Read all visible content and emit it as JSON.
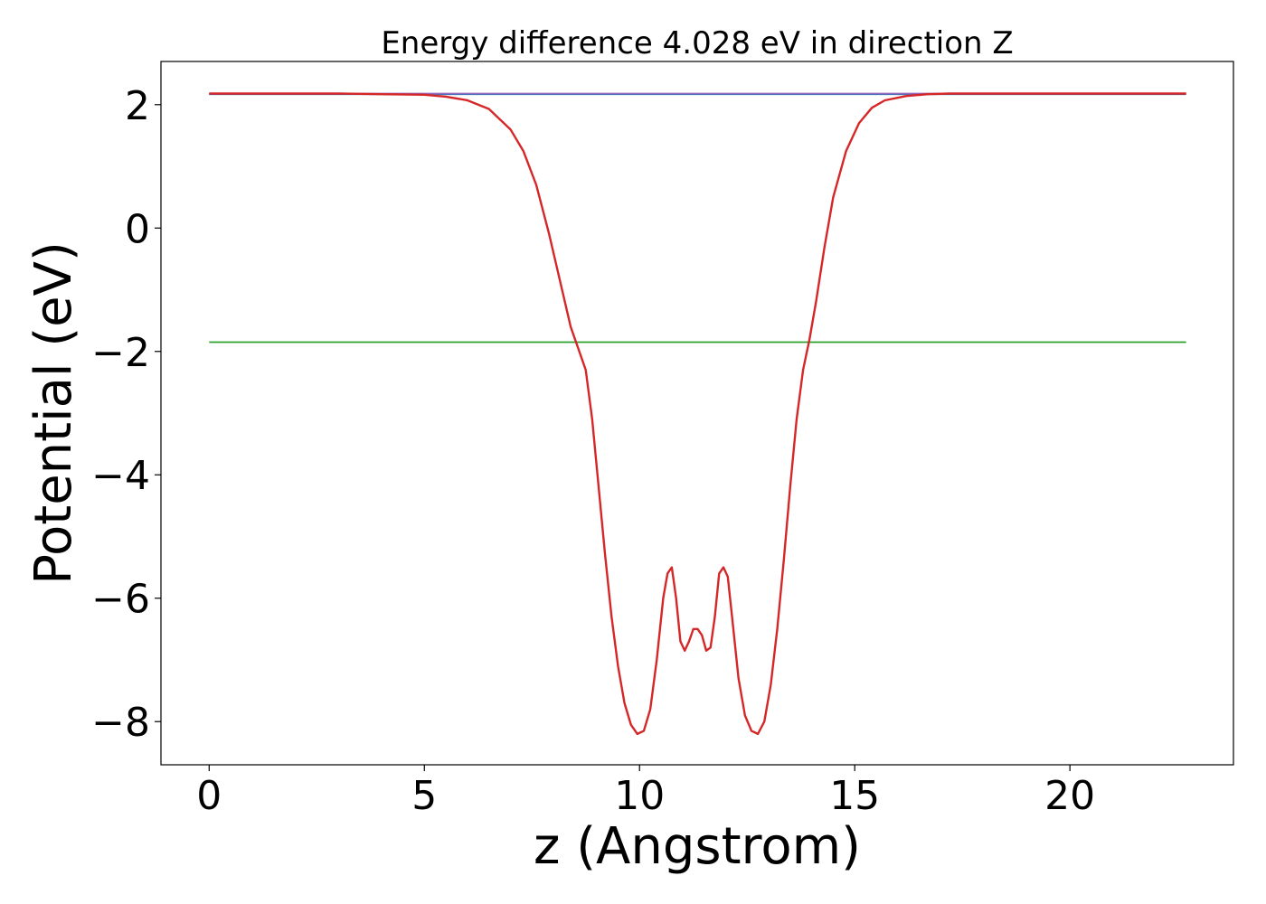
{
  "chart_data": {
    "type": "line",
    "title": "Energy difference 4.028 eV in direction Z",
    "xlabel": "z (Angstrom)",
    "ylabel": "Potential (eV)",
    "xlim": [
      -1.12,
      23.8
    ],
    "ylim": [
      -8.7,
      2.7
    ],
    "xticks": [
      0,
      5,
      10,
      15,
      20
    ],
    "xtick_labels": [
      "0",
      "5",
      "10",
      "15",
      "20"
    ],
    "yticks": [
      -8,
      -6,
      -4,
      -2,
      0,
      2
    ],
    "ytick_labels": [
      "−8",
      "−6",
      "−4",
      "−2",
      "0",
      "2"
    ],
    "grid": false,
    "series": [
      {
        "color": "#1f77b4",
        "x": [
          0,
          22.7
        ],
        "y": [
          2.17,
          2.17
        ]
      },
      {
        "color": "#2ca02c",
        "x": [
          0,
          22.7
        ],
        "y": [
          -1.85,
          -1.85
        ]
      },
      {
        "color": "#9467bd",
        "x": [
          0,
          22.7
        ],
        "y": [
          2.18,
          2.18
        ]
      },
      {
        "color": "#d62728",
        "x": [
          0,
          1,
          2,
          3,
          4,
          5,
          5.5,
          6,
          6.5,
          7,
          7.3,
          7.6,
          7.9,
          8.2,
          8.4,
          8.6,
          8.75,
          8.9,
          9.05,
          9.2,
          9.35,
          9.5,
          9.65,
          9.8,
          9.95,
          10.1,
          10.25,
          10.4,
          10.55,
          10.65,
          10.75,
          10.85,
          10.95,
          11.05,
          11.15,
          11.25,
          11.35,
          11.45,
          11.55,
          11.65,
          11.75,
          11.85,
          11.95,
          12.05,
          12.15,
          12.3,
          12.45,
          12.6,
          12.75,
          12.9,
          13.05,
          13.2,
          13.35,
          13.5,
          13.65,
          13.8,
          13.95,
          14.1,
          14.3,
          14.5,
          14.8,
          15.1,
          15.4,
          15.7,
          16.2,
          16.7,
          17.2,
          18,
          19,
          20,
          21,
          22,
          22.7
        ],
        "y": [
          2.18,
          2.18,
          2.18,
          2.18,
          2.17,
          2.16,
          2.13,
          2.07,
          1.93,
          1.6,
          1.25,
          0.7,
          -0.1,
          -1.0,
          -1.6,
          -2.0,
          -2.3,
          -3.1,
          -4.2,
          -5.3,
          -6.3,
          -7.1,
          -7.7,
          -8.05,
          -8.2,
          -8.15,
          -7.8,
          -7.0,
          -6.0,
          -5.6,
          -5.5,
          -6.0,
          -6.7,
          -6.85,
          -6.7,
          -6.5,
          -6.5,
          -6.6,
          -6.85,
          -6.8,
          -6.3,
          -5.6,
          -5.5,
          -5.65,
          -6.3,
          -7.3,
          -7.9,
          -8.15,
          -8.2,
          -8.0,
          -7.4,
          -6.5,
          -5.4,
          -4.2,
          -3.1,
          -2.3,
          -1.8,
          -1.2,
          -0.3,
          0.5,
          1.25,
          1.7,
          1.95,
          2.07,
          2.14,
          2.17,
          2.18,
          2.18,
          2.18,
          2.18,
          2.18,
          2.18,
          2.18
        ]
      }
    ]
  }
}
